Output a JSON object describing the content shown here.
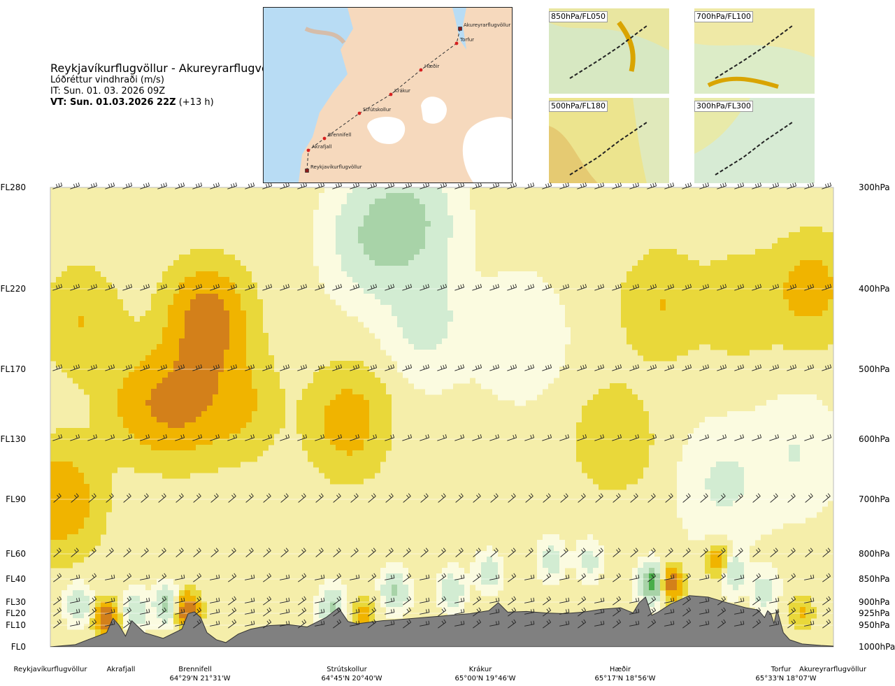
{
  "header": {
    "route": "Reykjavíkurflugvöllur - Akureyrarflugvöllur",
    "variable": "Lóðréttur vindhraði (m/s)",
    "issue_time": "IT: Sun. 01. 03. 2026 09Z",
    "valid_time": "VT: Sun. 01.03.2026 22Z",
    "lead": "(+13 h)"
  },
  "route_map": {
    "waypoints": [
      "Akureyrarflugvöllur",
      "Torfur",
      "Hæðir",
      "Krákur",
      "Strútskollur",
      "Brennifell",
      "Akrafjall",
      "Reykjavíkurflugvöllur"
    ]
  },
  "level_maps": [
    {
      "label": "850hPa/FL050"
    },
    {
      "label": "700hPa/FL100"
    },
    {
      "label": "500hPa/FL180"
    },
    {
      "label": "300hPa/FL300"
    }
  ],
  "colors": {
    "strong_up": "#d3801a",
    "up_orange": "#f0b400",
    "up_yellow": "#e9d83a",
    "weak_up": "#f5eeaa",
    "near_zero": "#fbfbe0",
    "weak_down": "#d2ecd2",
    "down": "#a8d3a8",
    "strong_down": "#49ad49",
    "terrain": "#808080"
  },
  "chart_data": {
    "type": "heatmap",
    "title": "Reykjavíkurflugvöllur - Akureyrarflugvöllur",
    "variable": "Lóðréttur vindhraði (m/s)",
    "y_left_ticks": [
      "FL280",
      "FL220",
      "FL170",
      "FL130",
      "FL90",
      "FL60",
      "FL40",
      "FL30",
      "FL20",
      "FL10",
      "FL0"
    ],
    "y_left_flightlevels": [
      280,
      220,
      170,
      130,
      90,
      60,
      40,
      30,
      20,
      10,
      0
    ],
    "y_right_ticks": [
      "300hPa",
      "400hPa",
      "500hPa",
      "600hPa",
      "700hPa",
      "800hPa",
      "850hPa",
      "900hPa",
      "925hPa",
      "950hPa",
      "1000hPa"
    ],
    "y_right_pressure_hpa": [
      300,
      400,
      500,
      600,
      700,
      800,
      850,
      900,
      925,
      950,
      1000
    ],
    "x_range_km": [
      0,
      250
    ],
    "waypoints": [
      {
        "name": "Reykjavíkurflugvöllur",
        "km": 0,
        "coord": ""
      },
      {
        "name": "Akrafjall",
        "km": 22,
        "coord": ""
      },
      {
        "name": "Brennifell",
        "km": 47,
        "coord": "64°29'N 21°31'W"
      },
      {
        "name": "Strútskollur",
        "km": 95,
        "coord": "64°45'N 20°40'W"
      },
      {
        "name": "Krákur",
        "km": 143,
        "coord": "65°00'N 19°46'W"
      },
      {
        "name": "Hæðir",
        "km": 190,
        "coord": "65°17'N 18°56'W"
      },
      {
        "name": "Torfur",
        "km": 235,
        "coord": "65°33'N 18°07'W"
      },
      {
        "name": "Akureyrarflugvöllur",
        "km": 250,
        "coord": ""
      }
    ],
    "terrain_profile": {
      "km": [
        0,
        8,
        12,
        18,
        20,
        22,
        24,
        26,
        30,
        36,
        42,
        44,
        46,
        48,
        50,
        53,
        56,
        60,
        64,
        70,
        76,
        82,
        88,
        92,
        95,
        98,
        102,
        106,
        110,
        116,
        122,
        128,
        134,
        140,
        143,
        146,
        152,
        158,
        164,
        170,
        176,
        182,
        186,
        188,
        190,
        192,
        194,
        198,
        204,
        210,
        216,
        222,
        226,
        228,
        229,
        230,
        231,
        232,
        234,
        236,
        240,
        246,
        250
      ],
      "elev_m": [
        0,
        30,
        100,
        200,
        480,
        300,
        150,
        420,
        200,
        120,
        250,
        600,
        650,
        500,
        200,
        100,
        60,
        180,
        250,
        300,
        320,
        280,
        500,
        760,
        400,
        340,
        380,
        420,
        440,
        480,
        520,
        560,
        600,
        680,
        900,
        640,
        660,
        620,
        600,
        640,
        720,
        760,
        620,
        900,
        980,
        560,
        640,
        860,
        1000,
        980,
        900,
        760,
        700,
        500,
        680,
        600,
        350,
        700,
        200,
        100,
        40,
        20,
        10
      ]
    },
    "wind_barb_levels_fl": [
      280,
      220,
      170,
      130,
      90,
      60,
      40,
      30,
      20,
      10
    ],
    "contour_bins": [
      {
        "range": "< -1.0",
        "color_key": "strong_down"
      },
      {
        "range": "-1.0 to -0.5",
        "color_key": "down"
      },
      {
        "range": "-0.5 to -0.1",
        "color_key": "weak_down"
      },
      {
        "range": "-0.1 to 0.1",
        "color_key": "near_zero"
      },
      {
        "range": "0.1 to 0.3",
        "color_key": "weak_up"
      },
      {
        "range": "0.3 to 0.6",
        "color_key": "up_yellow"
      },
      {
        "range": "0.6 to 1.0",
        "color_key": "up_orange"
      },
      {
        "range": "> 1.0",
        "color_key": "strong_up"
      }
    ],
    "w_field_blobs": [
      {
        "km": 3,
        "fl": 90,
        "w": 0.8
      },
      {
        "km": 10,
        "fl": 200,
        "w": 0.45
      },
      {
        "km": 28,
        "fl": 150,
        "w": 0.5
      },
      {
        "km": 42,
        "fl": 150,
        "w": 0.8
      },
      {
        "km": 50,
        "fl": 200,
        "w": 1.1
      },
      {
        "km": 60,
        "fl": 150,
        "w": 0.5
      },
      {
        "km": 95,
        "fl": 140,
        "w": 0.65
      },
      {
        "km": 103,
        "fl": 250,
        "w": -0.6
      },
      {
        "km": 115,
        "fl": 260,
        "w": -0.7
      },
      {
        "km": 120,
        "fl": 200,
        "w": -0.35
      },
      {
        "km": 150,
        "fl": 190,
        "w": -0.25
      },
      {
        "km": 180,
        "fl": 130,
        "w": 0.4
      },
      {
        "km": 195,
        "fl": 210,
        "w": 0.45
      },
      {
        "km": 220,
        "fl": 210,
        "w": 0.35
      },
      {
        "km": 243,
        "fl": 220,
        "w": 0.6
      },
      {
        "km": 215,
        "fl": 100,
        "w": -0.3
      },
      {
        "km": 238,
        "fl": 120,
        "w": -0.25
      },
      {
        "km": 9,
        "fl": 28,
        "w": -0.7
      },
      {
        "km": 18,
        "fl": 16,
        "w": 1.3
      },
      {
        "km": 27,
        "fl": 22,
        "w": -0.6
      },
      {
        "km": 37,
        "fl": 28,
        "w": -0.8
      },
      {
        "km": 44,
        "fl": 22,
        "w": 1.5
      },
      {
        "km": 90,
        "fl": 25,
        "w": -0.8
      },
      {
        "km": 100,
        "fl": 18,
        "w": 0.7
      },
      {
        "km": 110,
        "fl": 35,
        "w": -0.8
      },
      {
        "km": 128,
        "fl": 35,
        "w": -0.6
      },
      {
        "km": 140,
        "fl": 45,
        "w": -0.5
      },
      {
        "km": 160,
        "fl": 55,
        "w": -0.5
      },
      {
        "km": 172,
        "fl": 55,
        "w": -0.4
      },
      {
        "km": 192,
        "fl": 38,
        "w": -1.5
      },
      {
        "km": 198,
        "fl": 38,
        "w": 1.2
      },
      {
        "km": 213,
        "fl": 55,
        "w": 0.7
      },
      {
        "km": 218,
        "fl": 45,
        "w": -0.6
      },
      {
        "km": 228,
        "fl": 35,
        "w": -0.5
      },
      {
        "km": 240,
        "fl": 20,
        "w": 0.5
      }
    ]
  }
}
